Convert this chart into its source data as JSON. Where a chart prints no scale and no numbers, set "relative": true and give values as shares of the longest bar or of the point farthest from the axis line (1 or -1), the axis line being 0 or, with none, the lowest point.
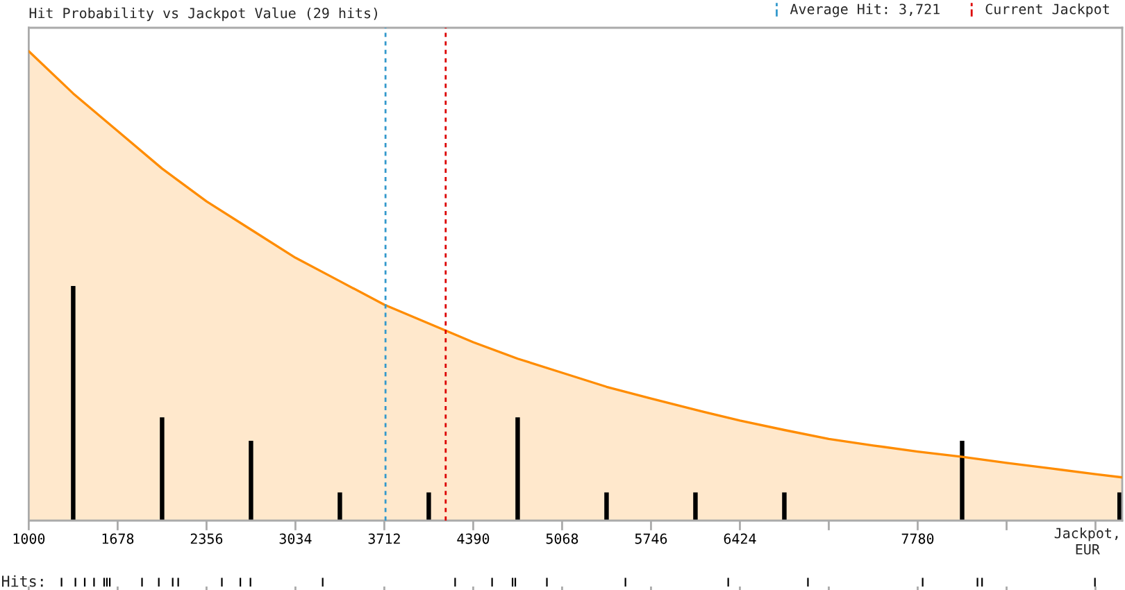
{
  "chart_data": [
    {
      "type": "bar",
      "title": "Hit Probability vs Jackpot Value (29 hits)",
      "xlabel": "Jackpot, EUR",
      "relative": true,
      "xlim": [
        1000,
        9340
      ],
      "xticks": [
        1000,
        1678,
        2356,
        3034,
        3712,
        4390,
        5068,
        5746,
        6424,
        {
          "value": 7102,
          "label": null
        },
        7780,
        {
          "value": 8458,
          "label": null
        },
        {
          "value": 9136,
          "label": null
        }
      ],
      "legend": "top right",
      "ref_lines": [
        {
          "axis": "x",
          "value": 3721,
          "label": "Average Hit: 3,721",
          "color": "#3399cc",
          "line_style": "dashed"
        },
        {
          "axis": "x",
          "value": 4180,
          "label": "Current Jackpot",
          "color": "#dd0000",
          "line_style": "dashed"
        }
      ],
      "series": [
        {
          "type": "area",
          "color": "#ff8c00",
          "x": [
            1000,
            1339,
            1678,
            2017,
            2356,
            2695,
            3034,
            3373,
            3712,
            4051,
            4390,
            4729,
            5068,
            5407,
            5746,
            6085,
            6424,
            6763,
            7102,
            7441,
            7780,
            8119,
            8458,
            8797,
            9136,
            9340
          ],
          "values": [
            1,
            0.91,
            0.83,
            0.75,
            0.68,
            0.62,
            0.56,
            0.51,
            0.46,
            0.42,
            0.38,
            0.345,
            0.315,
            0.285,
            0.26,
            0.236,
            0.213,
            0.193,
            0.174,
            0.16,
            0.147,
            0.136,
            0.123,
            0.111,
            0.099,
            0.092
          ]
        },
        {
          "type": "bar",
          "color": "#000000",
          "x": [
            1339,
            2017,
            2695,
            3373,
            4051,
            4729,
            5407,
            6085,
            6763,
            8119,
            9320
          ],
          "values": [
            0.5,
            0.22,
            0.17,
            0.06,
            0.06,
            0.22,
            0.06,
            0.06,
            0.06,
            0.17,
            0.06
          ]
        }
      ]
    },
    {
      "type": "bar",
      "ylabel": "Hits:",
      "relative": true,
      "xticks": [
        1000,
        1678,
        2356,
        3034,
        3712,
        4390,
        5068,
        5746,
        6424,
        {
          "value": 7102,
          "label": null
        },
        7780,
        {
          "value": 8458,
          "label": null
        },
        {
          "value": 9136,
          "label": null
        }
      ],
      "tick_labels": false,
      "color": "#000000",
      "x": [
        1250,
        1356,
        1427,
        1498,
        1575,
        1596,
        1618,
        1864,
        1992,
        2098,
        2140,
        2473,
        2614,
        2691,
        3242,
        4252,
        4534,
        4690,
        4711,
        4952,
        5551,
        6335,
        6943,
        7818,
        8236,
        8271,
        9132
      ],
      "values": [
        1,
        1,
        1,
        1,
        1,
        1,
        1,
        1,
        1,
        1,
        1,
        1,
        1,
        1,
        1,
        1,
        1,
        1,
        1,
        1,
        1,
        1,
        1,
        1,
        1,
        1,
        1
      ]
    }
  ]
}
